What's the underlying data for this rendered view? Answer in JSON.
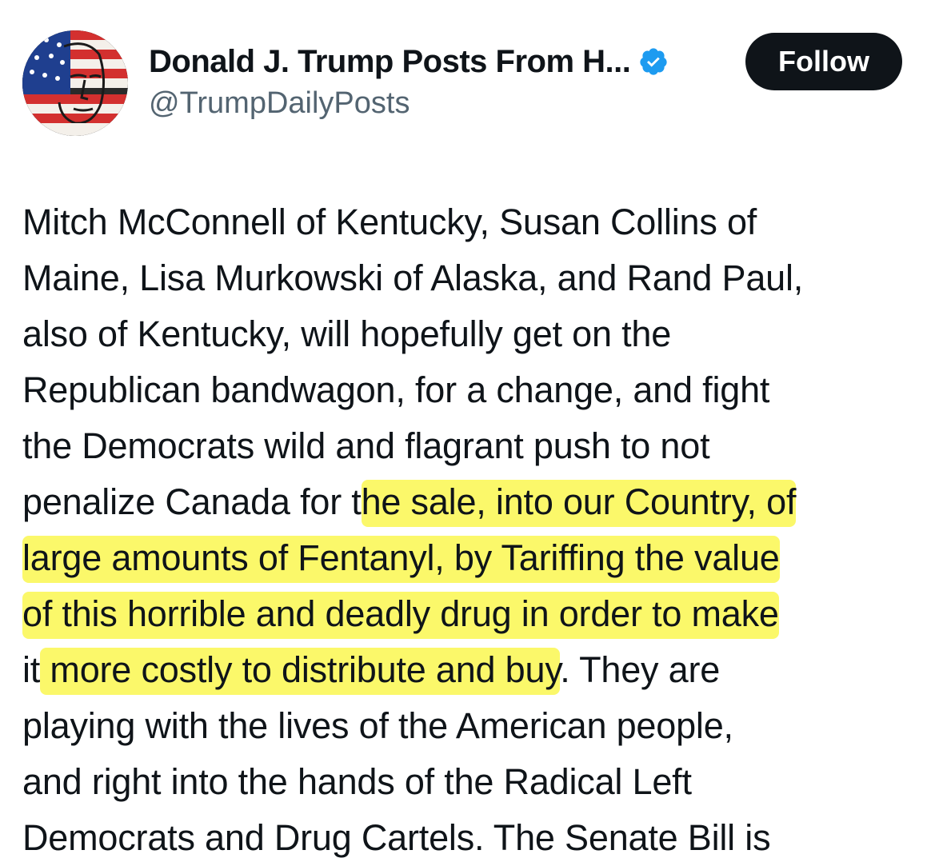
{
  "author": {
    "display_name": "Donald J. Trump Posts From H...",
    "handle": "@TrumpDailyPosts",
    "verified": true,
    "verified_color": "#1d9bf0",
    "avatar_icon": "flag-face-avatar"
  },
  "follow_button": {
    "label": "Follow"
  },
  "post": {
    "highlight_color": "#f9f64a",
    "lines": [
      {
        "pre": "Mitch McConnell of Kentucky, Susan Collins of",
        "hl": "",
        "post": ""
      },
      {
        "pre": "Maine, Lisa Murkowski of Alaska, and Rand Paul,",
        "hl": "",
        "post": ""
      },
      {
        "pre": "also of Kentucky, will hopefully get on the",
        "hl": "",
        "post": ""
      },
      {
        "pre": "Republican bandwagon, for a change, and fight",
        "hl": "",
        "post": ""
      },
      {
        "pre": "the Democrats wild and flagrant push to not",
        "hl": "",
        "post": ""
      },
      {
        "pre": "penalize Canada for t",
        "hl": "he sale, into our Country, of",
        "post": ""
      },
      {
        "pre": "",
        "hl": "large amounts of Fentanyl, by Tariffing the value",
        "post": ""
      },
      {
        "pre": "",
        "hl": "of this horrible and deadly drug in order to make",
        "post": ""
      },
      {
        "pre": "it",
        "hl": " more costly to distribute and buy",
        "post": ". They are"
      },
      {
        "pre": "playing with the lives of the American people,",
        "hl": "",
        "post": ""
      },
      {
        "pre": "and right into the hands of the Radical Left",
        "hl": "",
        "post": ""
      },
      {
        "pre": "Democrats and Drug Cartels. The Senate Bill is",
        "hl": "",
        "post": ""
      }
    ]
  }
}
